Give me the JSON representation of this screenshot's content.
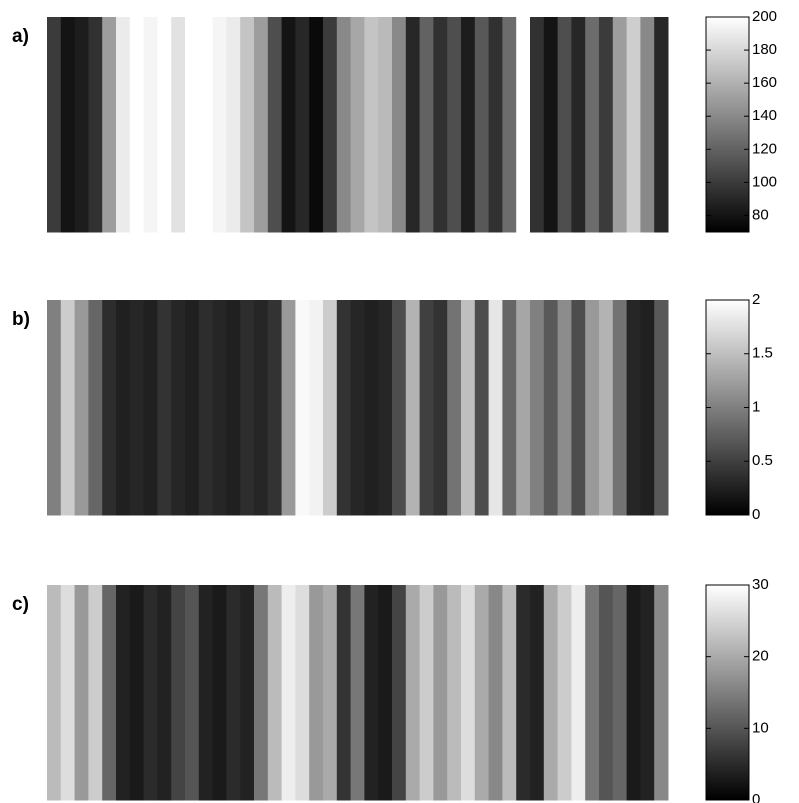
{
  "chart_data": [
    {
      "type": "heatmap",
      "label": "a)",
      "z": [
        [
          100,
          80,
          85,
          95,
          150,
          190,
          200,
          195,
          200,
          185,
          200,
          200,
          195,
          190,
          170,
          150,
          110,
          80,
          90,
          75,
          100,
          140,
          155,
          170,
          165,
          140,
          90,
          120,
          95,
          110,
          85,
          115,
          95,
          125,
          200,
          95,
          80,
          110,
          90,
          125,
          100,
          150,
          175,
          140,
          90
        ]
      ],
      "clim": [
        70,
        200
      ],
      "cticks": [
        80,
        100,
        120,
        140,
        160,
        180,
        200
      ]
    },
    {
      "type": "heatmap",
      "label": "b)",
      "z": [
        [
          1.0,
          1.6,
          1.2,
          0.8,
          0.35,
          0.25,
          0.3,
          0.25,
          0.4,
          0.3,
          0.25,
          0.35,
          0.3,
          0.25,
          0.35,
          0.3,
          0.4,
          1.2,
          1.95,
          1.9,
          1.6,
          0.4,
          0.3,
          0.25,
          0.3,
          0.6,
          1.4,
          0.5,
          0.4,
          0.9,
          1.5,
          0.6,
          1.8,
          0.8,
          1.3,
          1.0,
          0.7,
          1.1,
          0.6,
          1.2,
          1.4,
          0.9,
          0.3,
          0.25,
          0.7
        ]
      ],
      "clim": [
        0,
        2
      ],
      "cticks": [
        0,
        0.5,
        1,
        1.5,
        2
      ]
    },
    {
      "type": "heatmap",
      "label": "c)",
      "z": [
        [
          22,
          26,
          18,
          24,
          12,
          4,
          3,
          5,
          4,
          8,
          10,
          4,
          3,
          5,
          4,
          14,
          22,
          28,
          26,
          18,
          20,
          6,
          14,
          4,
          3,
          8,
          20,
          24,
          18,
          22,
          26,
          20,
          16,
          22,
          5,
          4,
          20,
          24,
          28,
          14,
          10,
          12,
          3,
          4,
          16
        ]
      ],
      "clim": [
        0,
        30
      ],
      "cticks": [
        0,
        10,
        20,
        30
      ]
    }
  ]
}
